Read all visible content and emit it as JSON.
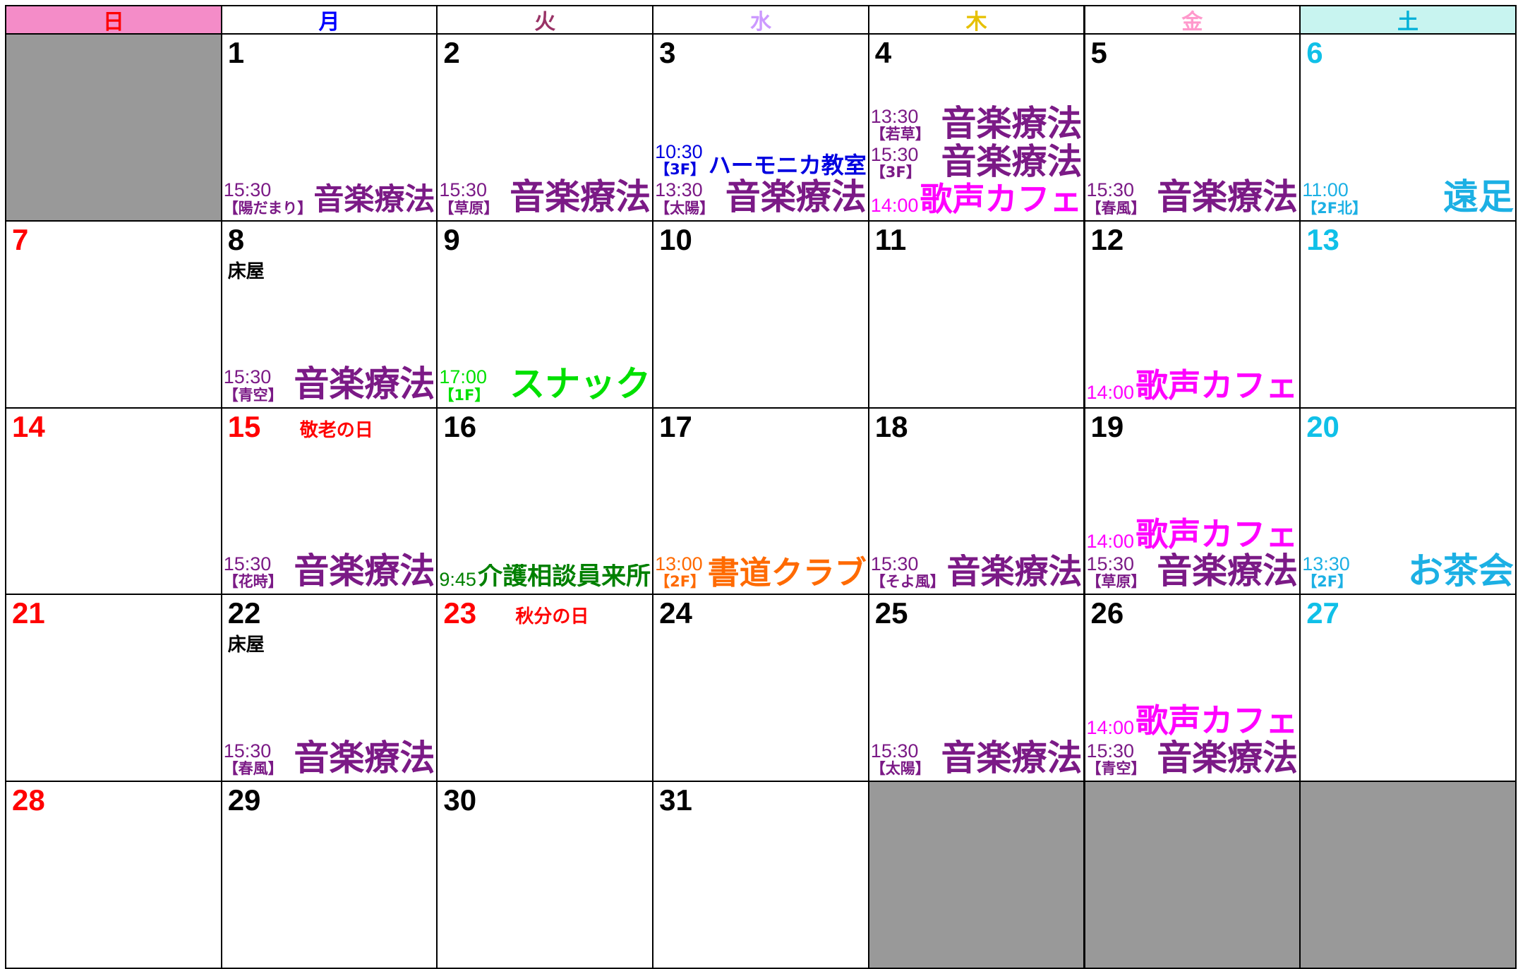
{
  "weekdays": [
    {
      "label": "日",
      "color": "#ff0000",
      "bg": "#f48cc8"
    },
    {
      "label": "月",
      "color": "#0000ff",
      "bg": "#ffffff"
    },
    {
      "label": "火",
      "color": "#993366",
      "bg": "#ffffff"
    },
    {
      "label": "水",
      "color": "#cc99ff",
      "bg": "#ffffff"
    },
    {
      "label": "木",
      "color": "#e6c000",
      "bg": "#ffffff"
    },
    {
      "label": "金",
      "color": "#ff99cc",
      "bg": "#ffffff"
    },
    {
      "label": "土",
      "color": "#00b0d8",
      "bg": "#c8f4f0"
    }
  ],
  "weeks": [
    [
      null,
      {
        "day": "1",
        "events": [
          {
            "time": "15:30",
            "place": "【陽だまり】",
            "name": "音楽療法",
            "color": "#7b1a86"
          }
        ]
      },
      {
        "day": "2",
        "events": [
          {
            "time": "15:30",
            "place": "【草原】",
            "name": "音楽療法",
            "color": "#7b1a86"
          }
        ]
      },
      {
        "day": "3",
        "events": [
          {
            "time": "10:30",
            "place": "【3F】",
            "name": "ハーモニカ教室",
            "color": "#0000e0"
          },
          {
            "time": "13:30",
            "place": "【太陽】",
            "name": "音楽療法",
            "color": "#7b1a86"
          }
        ]
      },
      {
        "day": "4",
        "events": [
          {
            "time": "13:30",
            "place": "【若草】",
            "name": "音楽療法",
            "color": "#7b1a86"
          },
          {
            "time": "15:30",
            "place": "【3F】",
            "name": "音楽療法",
            "color": "#7b1a86"
          },
          {
            "time": "14:00",
            "name": "歌声カフェ",
            "color": "#ff00ff"
          }
        ]
      },
      {
        "day": "5",
        "events": [
          {
            "time": "15:30",
            "place": "【春風】",
            "name": "音楽療法",
            "color": "#7b1a86"
          }
        ]
      },
      {
        "day": "6",
        "events": [
          {
            "time": "11:00",
            "place": "【2F北】",
            "name": "遠足",
            "color": "#1cb0e4"
          }
        ]
      }
    ],
    [
      {
        "day": "7"
      },
      {
        "day": "8",
        "note": "床屋",
        "events": [
          {
            "time": "15:30",
            "place": "【青空】",
            "name": "音楽療法",
            "color": "#7b1a86"
          }
        ]
      },
      {
        "day": "9",
        "events": [
          {
            "time": "17:00",
            "place": "【1F】",
            "name": "スナック",
            "color": "#00e000"
          }
        ]
      },
      {
        "day": "10"
      },
      {
        "day": "11"
      },
      {
        "day": "12",
        "events": [
          {
            "time": "14:00",
            "name": "歌声カフェ",
            "color": "#ff00ff"
          }
        ]
      },
      {
        "day": "13"
      }
    ],
    [
      {
        "day": "14"
      },
      {
        "day": "15",
        "holiday": "敬老の日",
        "events": [
          {
            "time": "15:30",
            "place": "【花時】",
            "name": "音楽療法",
            "color": "#7b1a86"
          }
        ]
      },
      {
        "day": "16",
        "events": [
          {
            "time": "9:45",
            "name": "介護相談員来所",
            "color": "#008000"
          }
        ]
      },
      {
        "day": "17",
        "events": [
          {
            "time": "13:00",
            "place": "【2F】",
            "name": "書道クラブ",
            "color": "#ff6a00"
          }
        ]
      },
      {
        "day": "18",
        "events": [
          {
            "time": "15:30",
            "place": "【そよ風】",
            "name": "音楽療法",
            "color": "#7b1a86"
          }
        ]
      },
      {
        "day": "19",
        "events": [
          {
            "time": "14:00",
            "name": "歌声カフェ",
            "color": "#ff00ff"
          },
          {
            "time": "15:30",
            "place": "【草原】",
            "name": "音楽療法",
            "color": "#7b1a86"
          }
        ]
      },
      {
        "day": "20",
        "events": [
          {
            "time": "13:30",
            "place": "【2F】",
            "name": "お茶会",
            "color": "#1cb0e4"
          }
        ]
      }
    ],
    [
      {
        "day": "21"
      },
      {
        "day": "22",
        "note": "床屋",
        "events": [
          {
            "time": "15:30",
            "place": "【春風】",
            "name": "音楽療法",
            "color": "#7b1a86"
          }
        ]
      },
      {
        "day": "23",
        "holiday": "秋分の日"
      },
      {
        "day": "24"
      },
      {
        "day": "25",
        "events": [
          {
            "time": "15:30",
            "place": "【太陽】",
            "name": "音楽療法",
            "color": "#7b1a86"
          }
        ]
      },
      {
        "day": "26",
        "events": [
          {
            "time": "14:00",
            "name": "歌声カフェ",
            "color": "#ff00ff"
          },
          {
            "time": "15:30",
            "place": "【青空】",
            "name": "音楽療法",
            "color": "#7b1a86"
          }
        ]
      },
      {
        "day": "27"
      }
    ],
    [
      {
        "day": "28"
      },
      {
        "day": "29"
      },
      {
        "day": "30"
      },
      {
        "day": "31"
      },
      null,
      null,
      null
    ]
  ]
}
